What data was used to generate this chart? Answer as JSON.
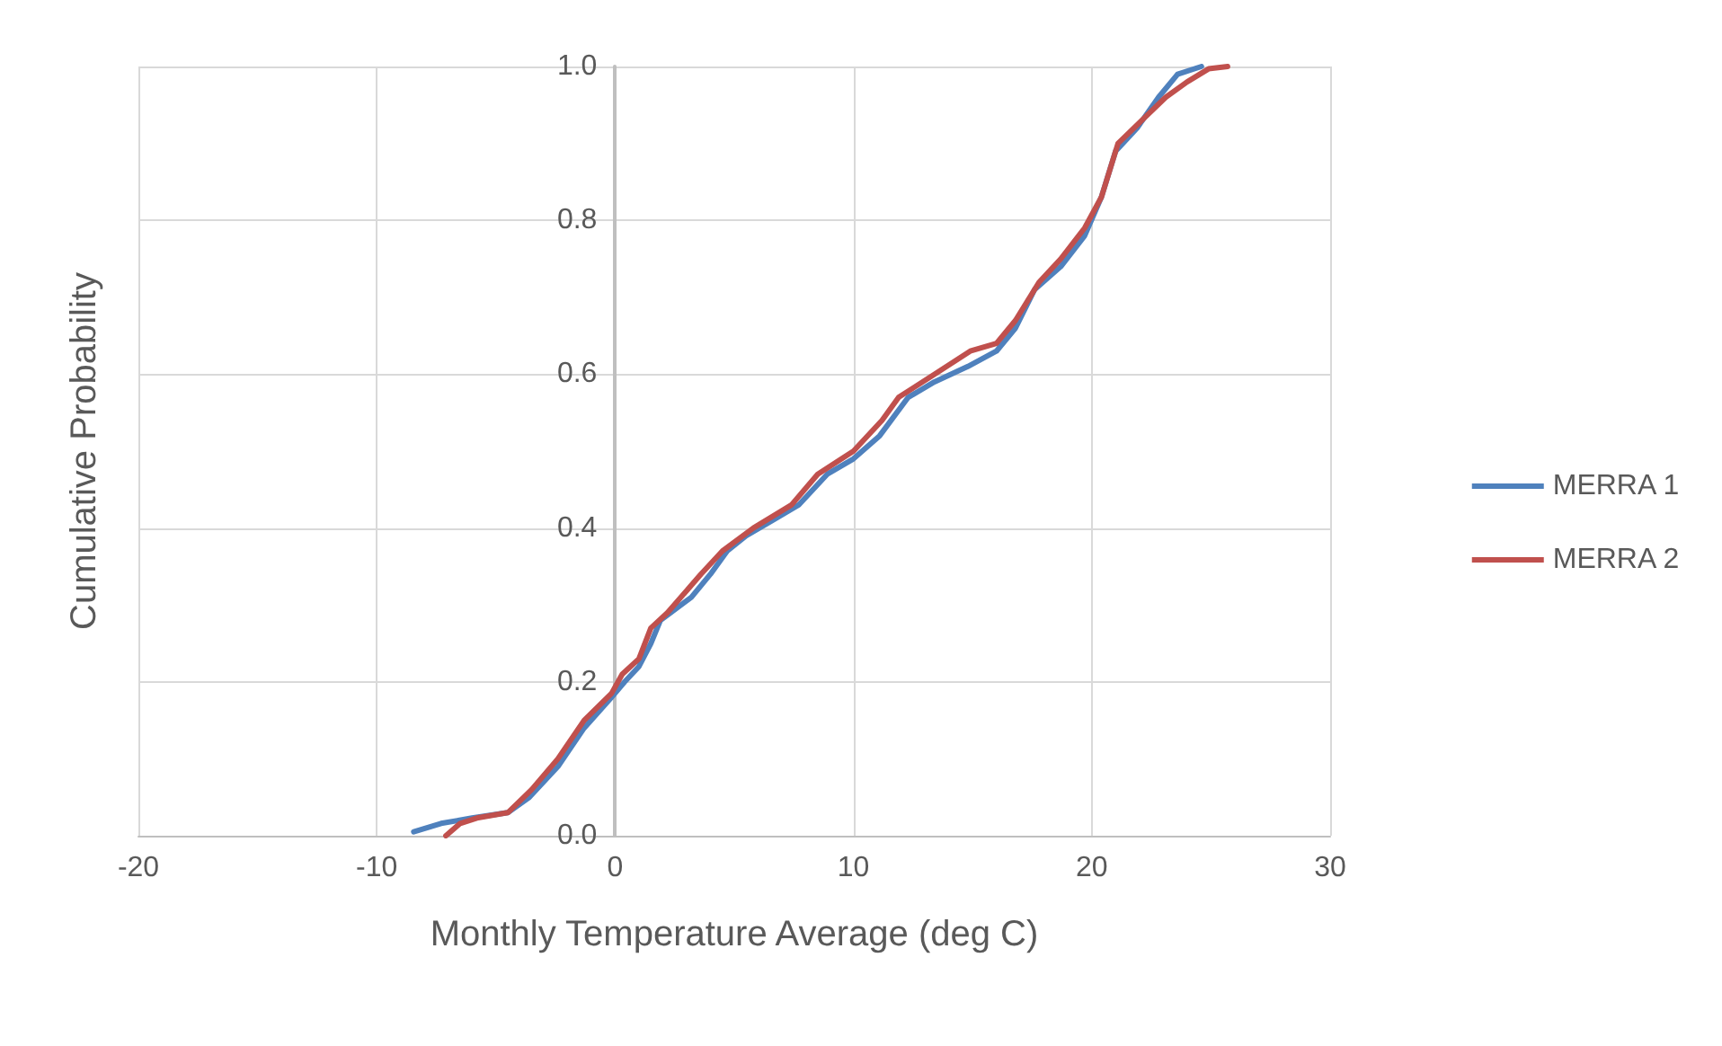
{
  "chart_data": {
    "type": "line",
    "xlabel": "Monthly Temperature Average (deg C)",
    "ylabel": "Cumulative Probability",
    "xlim": [
      -20,
      30
    ],
    "xticks": [
      -20,
      -10,
      0,
      10,
      20,
      30
    ],
    "ylim": [
      0,
      1
    ],
    "yticks": [
      {
        "value": 0,
        "label": "0.0"
      },
      0.2,
      0.4,
      0.6,
      0.8,
      {
        "value": 1,
        "label": "1.0"
      }
    ],
    "grid": true,
    "legend": "right",
    "marker": "none",
    "line_style": "solid",
    "series": [
      {
        "name": "MERRA 1",
        "color": "#4f81bd",
        "x": [
          -8.45,
          -7.3,
          -6.0,
          -4.5,
          -3.6,
          -2.4,
          -1.3,
          -0.15,
          0.4,
          1.0,
          1.5,
          1.9,
          3.2,
          4.0,
          4.7,
          5.5,
          6.6,
          7.7,
          8.9,
          10.0,
          11.1,
          12.3,
          13.4,
          14.8,
          16.0,
          16.8,
          17.6,
          18.7,
          19.7,
          20.4,
          21.0,
          21.9,
          22.8,
          23.6,
          24.6
        ],
        "values": [
          0.005,
          0.016,
          0.023,
          0.03,
          0.05,
          0.09,
          0.14,
          0.18,
          0.2,
          0.22,
          0.25,
          0.28,
          0.31,
          0.34,
          0.37,
          0.39,
          0.41,
          0.43,
          0.47,
          0.49,
          0.52,
          0.57,
          0.59,
          0.61,
          0.63,
          0.66,
          0.71,
          0.74,
          0.78,
          0.83,
          0.89,
          0.92,
          0.96,
          0.99,
          1.0
        ]
      },
      {
        "name": "MERRA 2",
        "color": "#c0504d",
        "x": [
          -7.1,
          -6.5,
          -5.8,
          -4.5,
          -3.5,
          -2.4,
          -1.3,
          -0.15,
          0.3,
          1.0,
          1.5,
          2.2,
          3.6,
          4.5,
          5.8,
          7.4,
          8.5,
          10.0,
          11.2,
          11.9,
          13.4,
          14.9,
          16.0,
          16.8,
          17.8,
          18.7,
          19.7,
          20.4,
          21.1,
          22.1,
          23.1,
          24.0,
          24.9,
          25.7
        ],
        "values": [
          0.0,
          0.016,
          0.023,
          0.03,
          0.06,
          0.1,
          0.15,
          0.185,
          0.21,
          0.23,
          0.27,
          0.29,
          0.34,
          0.37,
          0.4,
          0.43,
          0.47,
          0.5,
          0.54,
          0.57,
          0.6,
          0.63,
          0.64,
          0.67,
          0.72,
          0.75,
          0.79,
          0.83,
          0.9,
          0.93,
          0.96,
          0.98,
          0.997,
          1.0
        ]
      }
    ]
  }
}
